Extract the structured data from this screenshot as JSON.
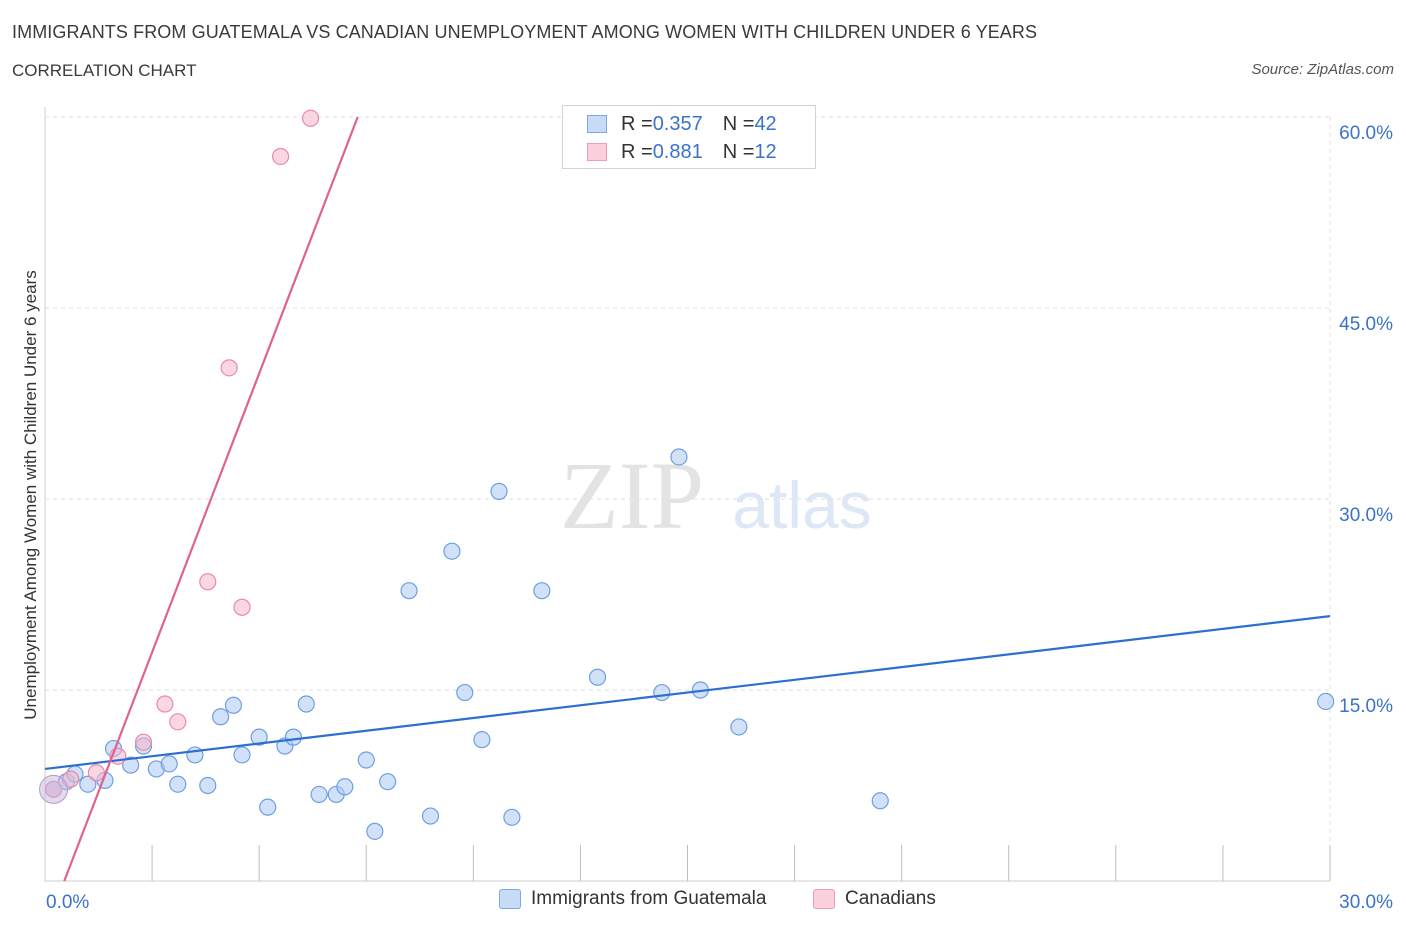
{
  "header": {
    "title": "IMMIGRANTS FROM GUATEMALA VS CANADIAN UNEMPLOYMENT AMONG WOMEN WITH CHILDREN UNDER 6 YEARS",
    "subtitle": "CORRELATION CHART",
    "source": "Source: ZipAtlas.com"
  },
  "watermark": {
    "zip": "ZIP",
    "atlas": "atlas"
  },
  "legend": {
    "rows": [
      {
        "r_label": "R = ",
        "r_value": "0.357",
        "n_label": "N = ",
        "n_value": "42",
        "color": "#a9c8f3"
      },
      {
        "r_label": "R = ",
        "r_value": "0.881",
        "n_label": "N = ",
        "n_value": "12",
        "color": "#f6b7cb"
      }
    ]
  },
  "bottom_legend": [
    {
      "label": "Immigrants from Guatemala",
      "color": "#a9c8f3"
    },
    {
      "label": "Canadians",
      "color": "#f6b7cb"
    }
  ],
  "chart_data": {
    "type": "scatter",
    "ylabel": "Unemployment Among Women with Children Under 6 years",
    "xlim": [
      0,
      30
    ],
    "ylim": [
      0,
      60
    ],
    "x_tick_labels": [
      {
        "value": 0,
        "label": "0.0%"
      },
      {
        "value": 30,
        "label": "30.0%"
      }
    ],
    "y_tick_labels": [
      {
        "value": 60,
        "label": "60.0%"
      },
      {
        "value": 45,
        "label": "45.0%"
      },
      {
        "value": 30,
        "label": "30.0%"
      },
      {
        "value": 15,
        "label": "15.0%"
      }
    ],
    "grid": true,
    "series": [
      {
        "name": "Immigrants from Guatemala",
        "color": "#a9c8f3",
        "stroke": "#6f9fe0",
        "line_color": "#2c6fd1",
        "trend": {
          "x": [
            0,
            30
          ],
          "y": [
            8.8,
            20.8
          ]
        },
        "points": [
          [
            0.2,
            7.2
          ],
          [
            0.5,
            7.8
          ],
          [
            0.7,
            8.4
          ],
          [
            1.0,
            7.6
          ],
          [
            1.4,
            7.9
          ],
          [
            1.6,
            10.4
          ],
          [
            2.0,
            9.1
          ],
          [
            2.3,
            10.6
          ],
          [
            2.6,
            8.8
          ],
          [
            2.9,
            9.2
          ],
          [
            3.1,
            7.6
          ],
          [
            3.5,
            9.9
          ],
          [
            3.8,
            7.5
          ],
          [
            4.1,
            12.9
          ],
          [
            4.4,
            13.8
          ],
          [
            4.6,
            9.9
          ],
          [
            5.0,
            11.3
          ],
          [
            5.2,
            5.8
          ],
          [
            5.6,
            10.6
          ],
          [
            5.8,
            11.3
          ],
          [
            6.1,
            13.9
          ],
          [
            6.4,
            6.8
          ],
          [
            6.8,
            6.8
          ],
          [
            7.0,
            7.4
          ],
          [
            7.5,
            9.5
          ],
          [
            7.7,
            3.9
          ],
          [
            8.0,
            7.8
          ],
          [
            8.5,
            22.8
          ],
          [
            9.0,
            5.1
          ],
          [
            9.5,
            25.9
          ],
          [
            9.8,
            14.8
          ],
          [
            10.2,
            11.1
          ],
          [
            10.6,
            30.6
          ],
          [
            10.9,
            5.0
          ],
          [
            11.6,
            22.8
          ],
          [
            12.9,
            16.0
          ],
          [
            14.4,
            14.8
          ],
          [
            14.8,
            33.3
          ],
          [
            15.3,
            15.0
          ],
          [
            16.2,
            12.1
          ],
          [
            19.5,
            6.3
          ],
          [
            29.9,
            14.1
          ]
        ]
      },
      {
        "name": "Canadians",
        "color": "#f6b7cb",
        "stroke": "#e98aaa",
        "line_color": "#e0628e",
        "trend": {
          "x": [
            0.45,
            7.3
          ],
          "y": [
            0,
            60
          ]
        },
        "points": [
          [
            0.2,
            7.2
          ],
          [
            0.6,
            8.0
          ],
          [
            1.2,
            8.5
          ],
          [
            1.7,
            9.8
          ],
          [
            2.3,
            10.9
          ],
          [
            2.8,
            13.9
          ],
          [
            3.1,
            12.5
          ],
          [
            3.8,
            23.5
          ],
          [
            4.3,
            40.3
          ],
          [
            4.6,
            21.5
          ],
          [
            5.5,
            56.9
          ],
          [
            6.2,
            59.9
          ]
        ]
      }
    ]
  }
}
